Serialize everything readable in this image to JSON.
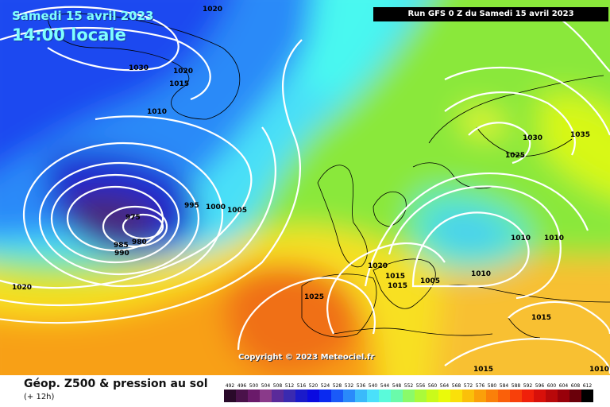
{
  "header": {
    "date": "Samedi 15 avril 2023",
    "time": "14:00 locale",
    "run": "Run GFS 0 Z du Samedi 15 avril 2023"
  },
  "copyright": "Copyright © 2023 Meteociel.fr",
  "footer": {
    "title": "Géop. Z500 & pression au sol",
    "subtitle": "(+ 12h)"
  },
  "legend": {
    "values": [
      "492",
      "496",
      "500",
      "504",
      "508",
      "512",
      "516",
      "520",
      "524",
      "528",
      "532",
      "536",
      "540",
      "544",
      "548",
      "552",
      "556",
      "560",
      "564",
      "568",
      "572",
      "576",
      "580",
      "584",
      "588",
      "592",
      "596",
      "600",
      "604",
      "608",
      "612"
    ],
    "colors": [
      "#2a0a2a",
      "#4a124a",
      "#6a1a6a",
      "#8a3a8a",
      "#5a2a9a",
      "#3a2ab0",
      "#1a1aca",
      "#0a0ae0",
      "#0a2af0",
      "#1a5af8",
      "#2a8afa",
      "#3abafa",
      "#4ae0fa",
      "#5afada",
      "#6afaaa",
      "#8afa6a",
      "#aafa3a",
      "#cafa1a",
      "#eafa0a",
      "#fae00a",
      "#fac00a",
      "#faa00a",
      "#fa800a",
      "#fa600a",
      "#f8400a",
      "#f0200a",
      "#d8100a",
      "#b8080a",
      "#98000a",
      "#6a000a",
      "#000000"
    ]
  },
  "colors": {
    "isobar": "#ffffff",
    "coast": "#000000",
    "label_time": "#7fffff"
  },
  "isobar_labels": [
    "1020",
    "1030",
    "1020",
    "1015",
    "1010",
    "975",
    "980",
    "985",
    "990",
    "995",
    "1000",
    "1005",
    "1020",
    "1015",
    "1015",
    "1025",
    "1005",
    "1010",
    "1010",
    "1010",
    "1030",
    "1025",
    "1035",
    "1015",
    "1015",
    "1010",
    "1020"
  ]
}
